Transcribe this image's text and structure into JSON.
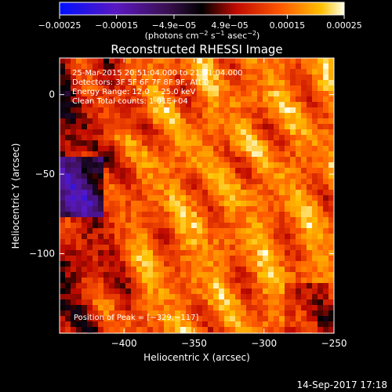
{
  "chart_data": {
    "type": "heatmap",
    "title": "Reconstructed RHESSI Image",
    "xlabel": "Heliocentric X (arcsec)",
    "ylabel": "Heliocentric Y (arcsec)",
    "xlim": [
      -446,
      -250
    ],
    "ylim": [
      -150,
      23
    ],
    "x_ticks": [
      -400,
      -350,
      -300,
      -250
    ],
    "x_tick_labels": [
      "−400",
      "−350",
      "−300",
      "−250"
    ],
    "y_ticks": [
      0,
      -50,
      -100
    ],
    "y_tick_labels": [
      "0",
      "−50",
      "−100"
    ],
    "colorbar": {
      "range": [
        -0.00025,
        0.00025
      ],
      "ticks": [
        -0.00025,
        -0.00015,
        -4.9e-05,
        4.9e-05,
        0.00015,
        0.00025
      ],
      "tick_labels": [
        "−0.00025",
        "−0.00015",
        "−4.9e−05",
        "4.9e−05",
        "0.00015",
        "0.00025"
      ],
      "unit_main": "(photons cm",
      "unit_sup1": "−2",
      "unit_mid1": " s",
      "unit_sup2": "−1",
      "unit_mid2": " asec",
      "unit_sup3": "−2",
      "unit_end": ")"
    },
    "info_lines": [
      "25-Mar-2015 20:51:04.000 to 21:01:04.000",
      "Detectors: 3F 5F 6F 7F 8F 9F, Att 0",
      "Energy Range: 12.0 − 25.0 keV",
      "Clean     Total counts: 1.01E+04"
    ],
    "peak_label": "Position of Peak = [−329,−117]",
    "peak": [
      -329,
      -117
    ],
    "grid": false,
    "colormap": "blue-purple-black-red-orange-yellow-white"
  },
  "footer": {
    "timestamp": "14-Sep-2017 17:18"
  }
}
